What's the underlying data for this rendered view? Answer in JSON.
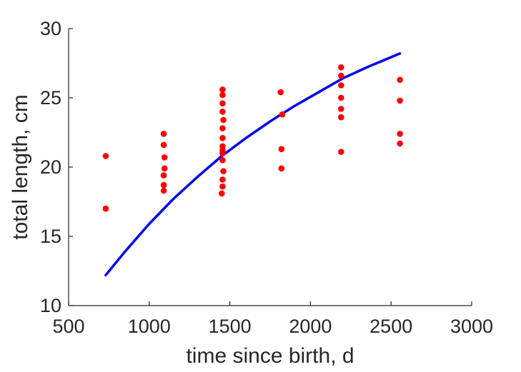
{
  "chart_data": {
    "type": "scatter",
    "title": "",
    "xlabel": "time since birth, d",
    "ylabel": "total length, cm",
    "xlim": [
      500,
      3000
    ],
    "ylim": [
      10,
      30
    ],
    "xticks": [
      "500",
      "1000",
      "1500",
      "2000",
      "2500",
      "3000"
    ],
    "yticks": [
      "10",
      "15",
      "20",
      "25",
      "30"
    ],
    "grid": false,
    "legend": "none",
    "colors": {
      "points": "#ff0000",
      "curve": "#0000ee",
      "axes": "#262626"
    },
    "series": [
      {
        "kind": "scatter",
        "points": [
          [
            730,
            20.8
          ],
          [
            730,
            17.0
          ],
          [
            1090,
            22.4
          ],
          [
            1090,
            21.6
          ],
          [
            1095,
            20.7
          ],
          [
            1095,
            19.9
          ],
          [
            1090,
            19.4
          ],
          [
            1090,
            18.7
          ],
          [
            1090,
            18.3
          ],
          [
            1455,
            25.6
          ],
          [
            1455,
            25.2
          ],
          [
            1455,
            24.6
          ],
          [
            1455,
            24.0
          ],
          [
            1460,
            23.4
          ],
          [
            1455,
            22.8
          ],
          [
            1455,
            22.1
          ],
          [
            1455,
            21.5
          ],
          [
            1455,
            21.2
          ],
          [
            1455,
            21.0
          ],
          [
            1455,
            20.5
          ],
          [
            1460,
            19.7
          ],
          [
            1455,
            19.1
          ],
          [
            1455,
            18.6
          ],
          [
            1450,
            18.1
          ],
          [
            1815,
            25.4
          ],
          [
            1825,
            23.8
          ],
          [
            1820,
            21.3
          ],
          [
            1820,
            19.9
          ],
          [
            2190,
            27.2
          ],
          [
            2190,
            26.6
          ],
          [
            2190,
            25.9
          ],
          [
            2190,
            25.0
          ],
          [
            2190,
            24.2
          ],
          [
            2190,
            23.6
          ],
          [
            2190,
            21.1
          ],
          [
            2555,
            26.3
          ],
          [
            2555,
            24.8
          ],
          [
            2555,
            22.4
          ],
          [
            2555,
            21.7
          ]
        ]
      },
      {
        "kind": "line",
        "points": [
          [
            730,
            12.2
          ],
          [
            850,
            13.9
          ],
          [
            1000,
            15.9
          ],
          [
            1150,
            17.7
          ],
          [
            1300,
            19.3
          ],
          [
            1450,
            20.8
          ],
          [
            1600,
            22.1
          ],
          [
            1750,
            23.3
          ],
          [
            1900,
            24.4
          ],
          [
            2050,
            25.4
          ],
          [
            2200,
            26.4
          ],
          [
            2350,
            27.2
          ],
          [
            2555,
            28.2
          ]
        ]
      }
    ]
  }
}
